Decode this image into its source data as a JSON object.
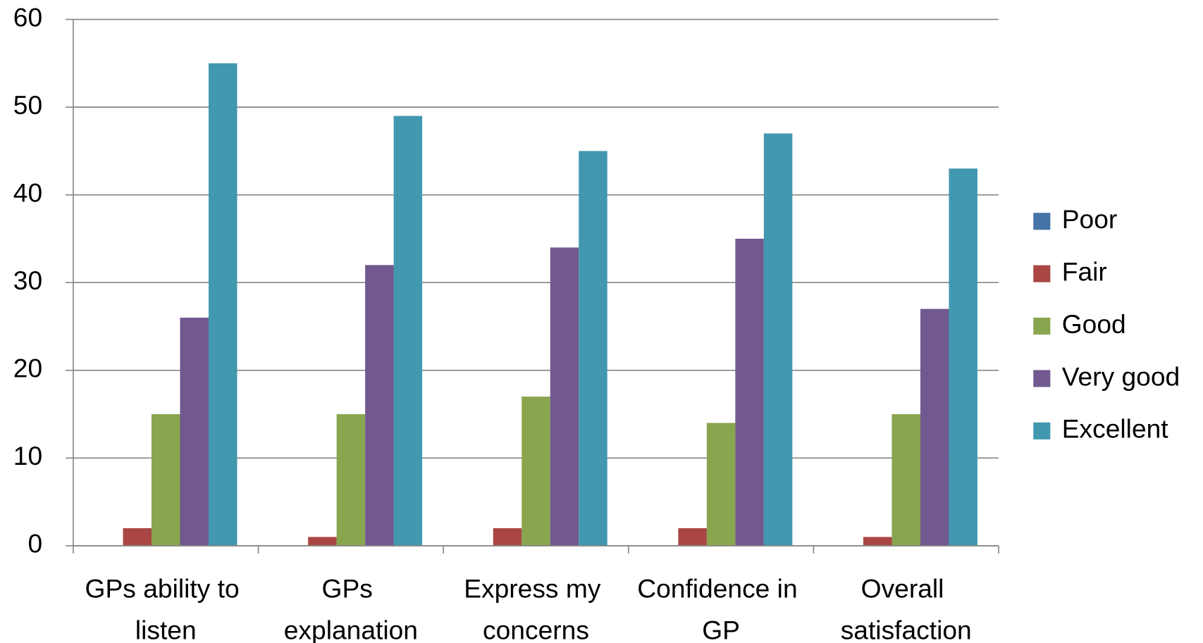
{
  "chart_data": {
    "type": "bar",
    "categories": [
      "GPs ability to listen",
      "GPs explanation",
      "Express my concerns",
      "Confidence in GP",
      "Overall satisfaction"
    ],
    "series": [
      {
        "name": "Poor",
        "color": "#4572a7",
        "values": [
          0,
          0,
          0,
          0,
          0
        ]
      },
      {
        "name": "Fair",
        "color": "#aa4643",
        "values": [
          2,
          1,
          2,
          2,
          1
        ]
      },
      {
        "name": "Good",
        "color": "#89a54e",
        "values": [
          15,
          15,
          17,
          14,
          15
        ]
      },
      {
        "name": "Very good",
        "color": "#71588f",
        "values": [
          26,
          32,
          34,
          35,
          27
        ]
      },
      {
        "name": "Excellent",
        "color": "#4198af",
        "values": [
          55,
          49,
          45,
          47,
          43
        ]
      }
    ],
    "ylim": [
      0,
      60
    ],
    "yticks": [
      0,
      10,
      20,
      30,
      40,
      50,
      60
    ],
    "grid": true,
    "legend": "right"
  }
}
